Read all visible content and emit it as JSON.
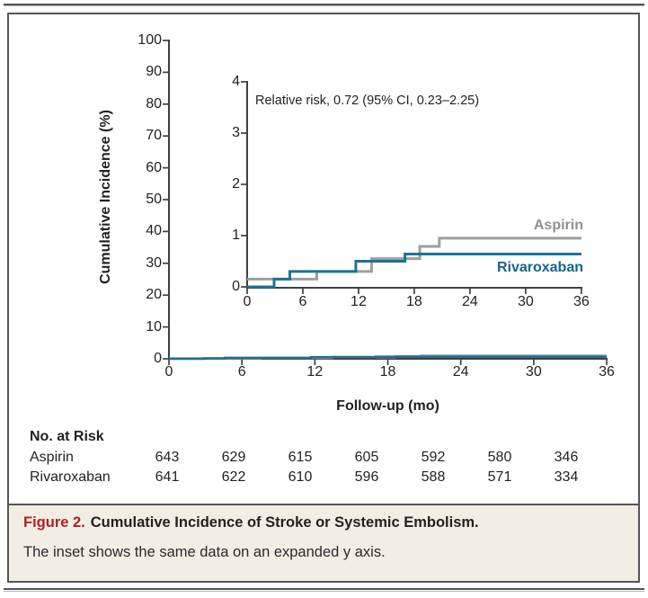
{
  "chart_data": {
    "type": "line",
    "title": "",
    "xlabel": "Follow-up (mo)",
    "ylabel": "Cumulative Incidence (%)",
    "x_ticks": [
      0,
      6,
      12,
      18,
      24,
      30,
      36
    ],
    "main_axis": {
      "ylim": [
        0,
        100
      ],
      "y_ticks": [
        0,
        10,
        20,
        30,
        40,
        50,
        60,
        70,
        80,
        90,
        100
      ]
    },
    "inset_axis": {
      "ylim": [
        0,
        4
      ],
      "y_ticks": [
        0,
        1,
        2,
        3,
        4
      ],
      "annotation": "Relative risk, 0.72 (95% CI, 0.23–2.25)",
      "description": "inset shows same data on expanded y axis"
    },
    "grid": "off",
    "legend_position": "labels-at-curve-ends",
    "series": [
      {
        "name": "Aspirin",
        "color": "#9c9ea1",
        "label_color": "#8e9093",
        "steps_pct": [
          [
            0,
            0.15
          ],
          [
            7.5,
            0.3
          ],
          [
            13.4,
            0.55
          ],
          [
            18.6,
            0.79
          ],
          [
            20.7,
            0.95
          ],
          [
            36,
            0.95
          ]
        ]
      },
      {
        "name": "Rivaroxaban",
        "color": "#1e7294",
        "label_color": "#15658a",
        "steps_pct": [
          [
            0,
            0
          ],
          [
            2.9,
            0.15
          ],
          [
            4.6,
            0.3
          ],
          [
            11.7,
            0.5
          ],
          [
            17.0,
            0.64
          ],
          [
            36,
            0.64
          ]
        ]
      }
    ]
  },
  "risk_table": {
    "title": "No. at Risk",
    "rows": [
      {
        "label": "Aspirin",
        "values": [
          "643",
          "629",
          "615",
          "605",
          "592",
          "580",
          "346"
        ]
      },
      {
        "label": "Rivaroxaban",
        "values": [
          "641",
          "622",
          "610",
          "596",
          "588",
          "571",
          "334"
        ]
      }
    ]
  },
  "caption": {
    "label": "Figure 2.",
    "title": "Cumulative Incidence of Stroke or Systemic Embolism.",
    "note": "The inset shows the same data on an expanded y axis."
  },
  "colors": {
    "axis": "#3f4042",
    "rule": "#54555a",
    "caption_bg": "#f3eee3",
    "figure_label_red": "#b01f24",
    "text": "#231f20"
  }
}
